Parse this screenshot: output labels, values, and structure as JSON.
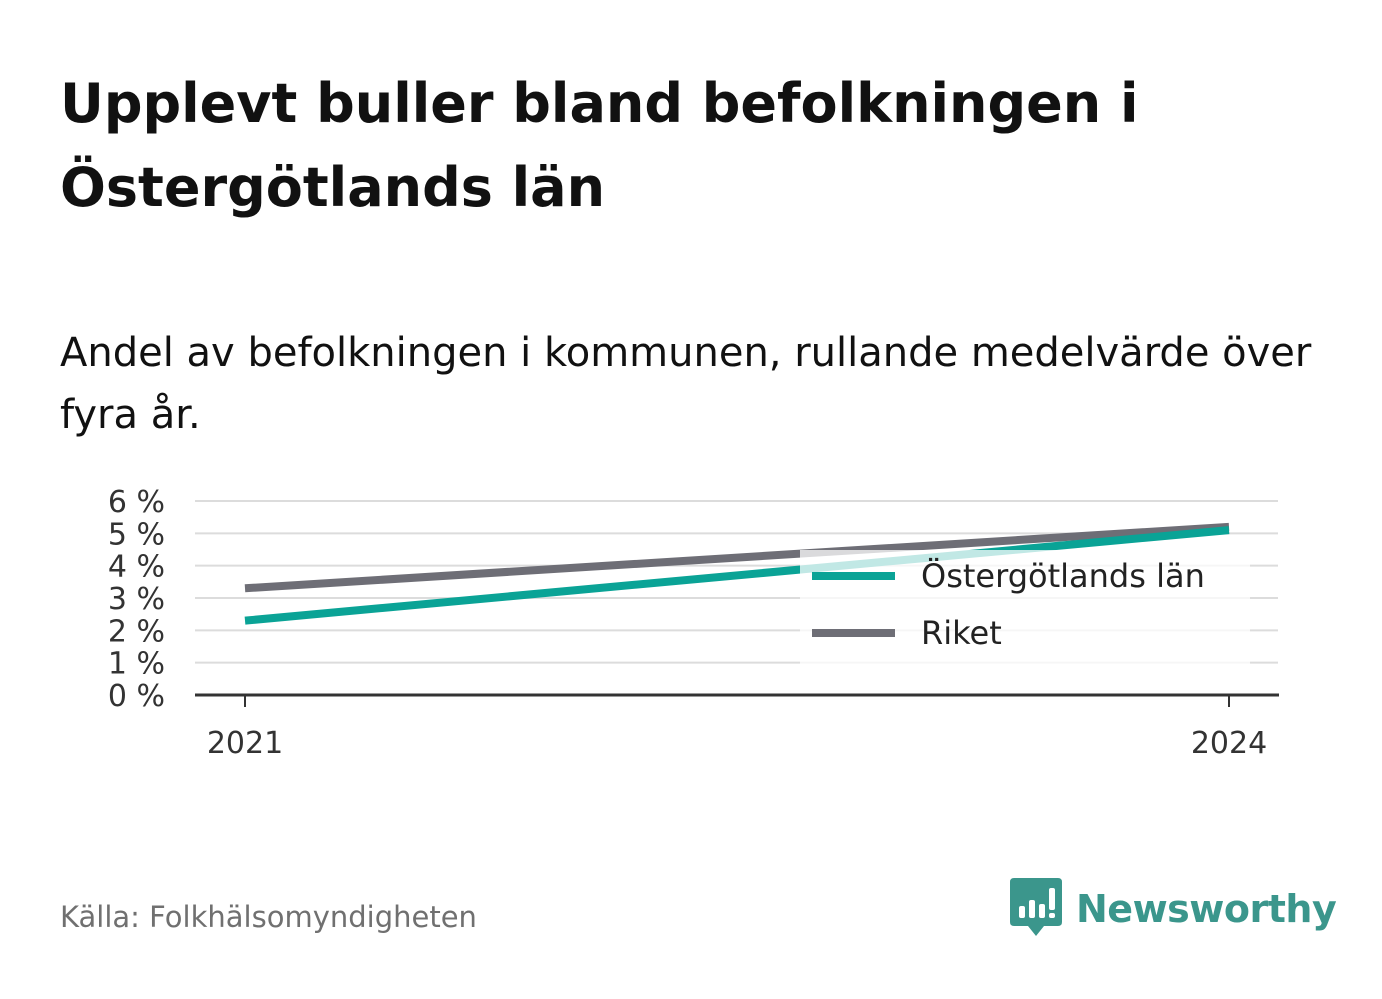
{
  "header": {
    "title": "Upplevt buller bland befolkningen i Östergötlands län",
    "subtitle": "Andel av befolkningen i kommunen, rullande medelvärde över fyra år."
  },
  "footer": {
    "source": "Källa: Folkhälsomyndigheten",
    "brand": "Newsworthy",
    "brand_icon": "bar-chart-speech-bubble-icon",
    "brand_color": "#3b968c"
  },
  "chart_data": {
    "type": "line",
    "x": [
      2021,
      2024
    ],
    "x_tick_labels": [
      "2021",
      "2024"
    ],
    "y_tick_labels": [
      "0 %",
      "1 %",
      "2 %",
      "3 %",
      "4 %",
      "5 %",
      "6 %"
    ],
    "ylim": [
      0,
      6
    ],
    "grid": true,
    "legend_position": "right",
    "series": [
      {
        "name": "Östergötlands län",
        "values": [
          2.3,
          5.1
        ],
        "color": "#0aa396"
      },
      {
        "name": "Riket",
        "values": [
          3.3,
          5.2
        ],
        "color": "#6e6e76"
      }
    ]
  }
}
